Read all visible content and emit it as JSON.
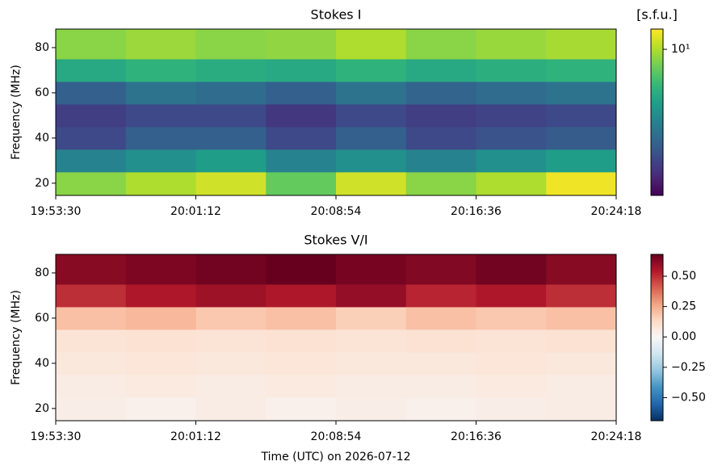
{
  "chart_data": [
    {
      "type": "heatmap",
      "title": "Stokes I",
      "ylabel": "Frequency (MHz)",
      "colorbar_label": "[s.f.u.]",
      "colormap": "viridis",
      "clim": [
        2,
        12.5
      ],
      "clog": true,
      "cticks": [
        {
          "value": 10,
          "label": "10¹"
        }
      ],
      "xlim": [
        "19:53:30",
        "20:24:18"
      ],
      "xticks": [
        "19:53:30",
        "20:01:12",
        "20:08:54",
        "20:16:36",
        "20:24:18"
      ],
      "ylim": [
        14.6,
        88.2
      ],
      "yticks": [
        20,
        40,
        60,
        80
      ],
      "xbins": [
        "19:53:30",
        "19:57:21",
        "20:01:12",
        "20:05:03",
        "20:08:54",
        "20:12:45",
        "20:16:36",
        "20:20:27",
        "20:24:18"
      ],
      "ybins": [
        14.6,
        25,
        35,
        45,
        55,
        65,
        75,
        88.2
      ],
      "z": [
        [
          9,
          10,
          11,
          8,
          11,
          9,
          10,
          12
        ],
        [
          4.5,
          5,
          5.5,
          4.5,
          5,
          4.5,
          5,
          5.5
        ],
        [
          3,
          3.5,
          3.5,
          3,
          3.5,
          3,
          3.2,
          3.4
        ],
        [
          2.8,
          3,
          3,
          2.7,
          3,
          2.8,
          2.9,
          3
        ],
        [
          3.5,
          4,
          3.8,
          3.5,
          4,
          3.6,
          3.8,
          4
        ],
        [
          6,
          6.5,
          6.2,
          6,
          6.5,
          6,
          6.3,
          6.5
        ],
        [
          9,
          9.5,
          9,
          9.2,
          10,
          9,
          9.4,
          9.8
        ]
      ]
    },
    {
      "type": "heatmap",
      "title": "Stokes V/I",
      "ylabel": "Frequency (MHz)",
      "xlabel": "Time (UTC) on 2026-07-12",
      "colormap": "RdBu_r",
      "clim": [
        -0.69,
        0.68
      ],
      "clog": false,
      "cticks": [
        {
          "value": 0.5,
          "label": "0.50"
        },
        {
          "value": 0.25,
          "label": "0.25"
        },
        {
          "value": 0,
          "label": "0.00"
        },
        {
          "value": -0.25,
          "label": "−0.25"
        },
        {
          "value": -0.5,
          "label": "−0.50"
        }
      ],
      "xlim": [
        "19:53:30",
        "20:24:18"
      ],
      "xticks": [
        "19:53:30",
        "20:01:12",
        "20:08:54",
        "20:16:36",
        "20:24:18"
      ],
      "ylim": [
        14.6,
        88.2
      ],
      "yticks": [
        20,
        40,
        60,
        80
      ],
      "xbins": [
        "19:53:30",
        "19:57:21",
        "20:01:12",
        "20:05:03",
        "20:08:54",
        "20:12:45",
        "20:16:36",
        "20:20:27",
        "20:24:18"
      ],
      "ybins": [
        14.6,
        25,
        35,
        45,
        55,
        65,
        75,
        88.2
      ],
      "z": [
        [
          0.04,
          0.03,
          0.05,
          0.03,
          0.04,
          0.03,
          0.04,
          0.05
        ],
        [
          0.05,
          0.06,
          0.05,
          0.06,
          0.05,
          0.05,
          0.06,
          0.05
        ],
        [
          0.07,
          0.08,
          0.07,
          0.08,
          0.07,
          0.07,
          0.08,
          0.07
        ],
        [
          0.09,
          0.1,
          0.09,
          0.1,
          0.09,
          0.1,
          0.09,
          0.1
        ],
        [
          0.2,
          0.22,
          0.18,
          0.2,
          0.16,
          0.2,
          0.18,
          0.2
        ],
        [
          0.5,
          0.55,
          0.58,
          0.55,
          0.6,
          0.52,
          0.55,
          0.5
        ],
        [
          0.62,
          0.64,
          0.66,
          0.68,
          0.65,
          0.63,
          0.66,
          0.62
        ]
      ]
    }
  ]
}
